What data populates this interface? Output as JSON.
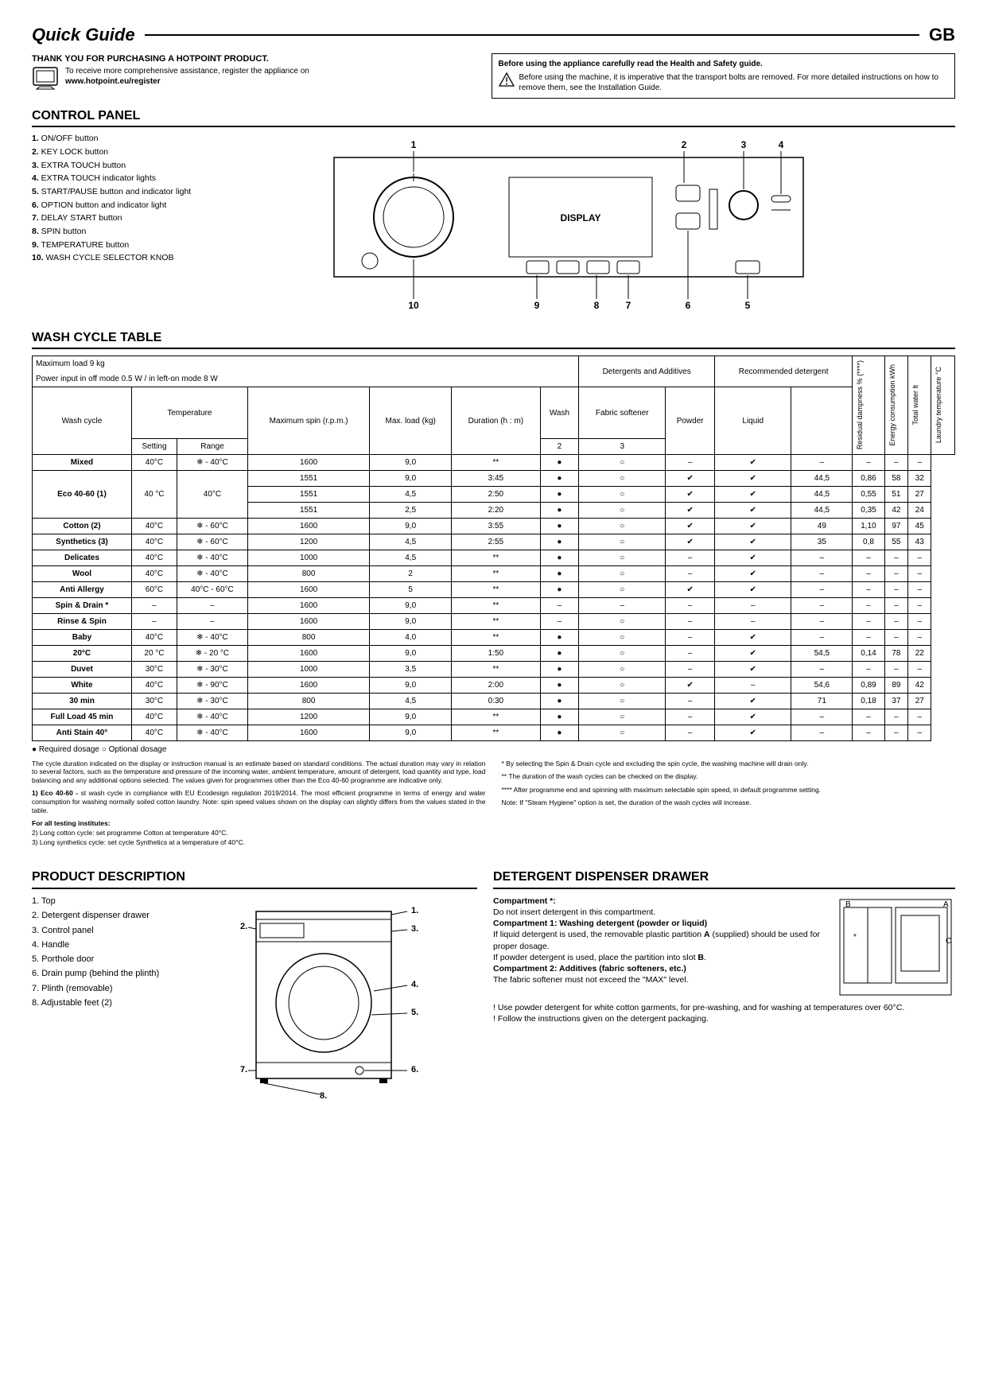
{
  "header": {
    "title": "Quick Guide",
    "country": "GB"
  },
  "intro": {
    "thank_you": "THANK YOU FOR PURCHASING A HOTPOINT PRODUCT.",
    "reg_text": "To receive more comprehensive assistance, register the appliance on",
    "reg_url": "www.hotpoint.eu/register",
    "warn_title": "Before using the appliance carefully read the Health and Safety guide.",
    "warn_body": "Before using the machine, it is imperative that the transport bolts are removed. For more detailed instructions on how to remove them, see the Installation Guide."
  },
  "control_panel": {
    "title": "CONTROL PANEL",
    "items": [
      "ON/OFF button",
      "KEY LOCK button",
      "EXTRA TOUCH button",
      "EXTRA TOUCH indicator lights",
      "START/PAUSE button and indicator light",
      "OPTION button and indicator light",
      "DELAY START button",
      "SPIN button",
      "TEMPERATURE button",
      "WASH CYCLE SELECTOR KNOB"
    ],
    "display_label": "DISPLAY"
  },
  "wash_table": {
    "title": "WASH CYCLE TABLE",
    "header1": "Maximum load 9 kg",
    "header2": "Power input in off mode 0.5 W / in left-on mode 8 W",
    "col_labels": {
      "wash_cycle": "Wash cycle",
      "temperature": "Temperature",
      "setting": "Setting",
      "range": "Range",
      "max_spin": "Maximum spin (r.p.m.)",
      "max_load": "Max. load (kg)",
      "duration": "Duration (h : m)",
      "detergents": "Detergents and Additives",
      "wash": "Wash",
      "softener": "Fabric softener",
      "two": "2",
      "three": "3",
      "recommended": "Recommended detergent",
      "powder": "Powder",
      "liquid": "Liquid",
      "resid": "Residual dampness % (****)",
      "energy": "Energy consumption kWh",
      "water": "Total water lt",
      "laundry_temp": "Laundry temperature °C"
    },
    "rows": [
      {
        "name": "Mixed",
        "setting": "40°C",
        "range": "❄ - 40°C",
        "spin": "1600",
        "load": "9,0",
        "dur": "**",
        "wash": "●",
        "soft": "○",
        "pow": "–",
        "liq": "✔",
        "resid": "–",
        "energy": "–",
        "water": "–",
        "ltemp": "–"
      },
      {
        "name": "Eco 40-60 (1)",
        "rowspan": 3,
        "setting": "40 °C",
        "setspan": 3,
        "range": "40°C",
        "rangespan": 3,
        "spin": "1551",
        "load": "9,0",
        "dur": "3:45",
        "wash": "●",
        "soft": "○",
        "pow": "✔",
        "liq": "✔",
        "resid": "44,5",
        "energy": "0,86",
        "water": "58",
        "ltemp": "32"
      },
      {
        "spin": "1551",
        "load": "4,5",
        "dur": "2:50",
        "wash": "●",
        "soft": "○",
        "pow": "✔",
        "liq": "✔",
        "resid": "44,5",
        "energy": "0,55",
        "water": "51",
        "ltemp": "27"
      },
      {
        "spin": "1551",
        "load": "2,5",
        "dur": "2:20",
        "wash": "●",
        "soft": "○",
        "pow": "✔",
        "liq": "✔",
        "resid": "44,5",
        "energy": "0,35",
        "water": "42",
        "ltemp": "24"
      },
      {
        "name": "Cotton (2)",
        "setting": "40°C",
        "range": "❄ - 60°C",
        "spin": "1600",
        "load": "9,0",
        "dur": "3:55",
        "wash": "●",
        "soft": "○",
        "pow": "✔",
        "liq": "✔",
        "resid": "49",
        "energy": "1,10",
        "water": "97",
        "ltemp": "45"
      },
      {
        "name": "Synthetics (3)",
        "setting": "40°C",
        "range": "❄ - 60°C",
        "spin": "1200",
        "load": "4,5",
        "dur": "2:55",
        "wash": "●",
        "soft": "○",
        "pow": "✔",
        "liq": "✔",
        "resid": "35",
        "energy": "0,8",
        "water": "55",
        "ltemp": "43"
      },
      {
        "name": "Delicates",
        "setting": "40°C",
        "range": "❄ - 40°C",
        "spin": "1000",
        "load": "4,5",
        "dur": "**",
        "wash": "●",
        "soft": "○",
        "pow": "–",
        "liq": "✔",
        "resid": "–",
        "energy": "–",
        "water": "–",
        "ltemp": "–"
      },
      {
        "name": "Wool",
        "setting": "40°C",
        "range": "❄ - 40°C",
        "spin": "800",
        "load": "2",
        "dur": "**",
        "wash": "●",
        "soft": "○",
        "pow": "–",
        "liq": "✔",
        "resid": "–",
        "energy": "–",
        "water": "–",
        "ltemp": "–"
      },
      {
        "name": "Anti Allergy",
        "setting": "60°C",
        "range": "40°C - 60°C",
        "spin": "1600",
        "load": "5",
        "dur": "**",
        "wash": "●",
        "soft": "○",
        "pow": "✔",
        "liq": "✔",
        "resid": "–",
        "energy": "–",
        "water": "–",
        "ltemp": "–"
      },
      {
        "name": "Spin & Drain *",
        "setting": "–",
        "range": "–",
        "spin": "1600",
        "load": "9,0",
        "dur": "**",
        "wash": "–",
        "soft": "–",
        "pow": "–",
        "liq": "–",
        "resid": "–",
        "energy": "–",
        "water": "–",
        "ltemp": "–"
      },
      {
        "name": "Rinse & Spin",
        "setting": "–",
        "range": "–",
        "spin": "1600",
        "load": "9,0",
        "dur": "**",
        "wash": "–",
        "soft": "○",
        "pow": "–",
        "liq": "–",
        "resid": "–",
        "energy": "–",
        "water": "–",
        "ltemp": "–"
      },
      {
        "name": "Baby",
        "setting": "40°C",
        "range": "❄ - 40°C",
        "spin": "800",
        "load": "4,0",
        "dur": "**",
        "wash": "●",
        "soft": "○",
        "pow": "–",
        "liq": "✔",
        "resid": "–",
        "energy": "–",
        "water": "–",
        "ltemp": "–"
      },
      {
        "name": "20°C",
        "setting": "20 °C",
        "range": "❄ - 20 °C",
        "spin": "1600",
        "load": "9,0",
        "dur": "1:50",
        "wash": "●",
        "soft": "○",
        "pow": "–",
        "liq": "✔",
        "resid": "54,5",
        "energy": "0,14",
        "water": "78",
        "ltemp": "22"
      },
      {
        "name": "Duvet",
        "setting": "30°C",
        "range": "❄ - 30°C",
        "spin": "1000",
        "load": "3,5",
        "dur": "**",
        "wash": "●",
        "soft": "○",
        "pow": "–",
        "liq": "✔",
        "resid": "–",
        "energy": "–",
        "water": "–",
        "ltemp": "–"
      },
      {
        "name": "White",
        "setting": "40°C",
        "range": "❄ - 90°C",
        "spin": "1600",
        "load": "9,0",
        "dur": "2:00",
        "wash": "●",
        "soft": "○",
        "pow": "✔",
        "liq": "–",
        "resid": "54,6",
        "energy": "0,89",
        "water": "89",
        "ltemp": "42"
      },
      {
        "name": "30 min",
        "setting": "30°C",
        "range": "❄ - 30°C",
        "spin": "800",
        "load": "4,5",
        "dur": "0:30",
        "wash": "●",
        "soft": "○",
        "pow": "–",
        "liq": "✔",
        "resid": "71",
        "energy": "0,18",
        "water": "37",
        "ltemp": "27"
      },
      {
        "name": "Full Load 45 min",
        "setting": "40°C",
        "range": "❄ - 40°C",
        "spin": "1200",
        "load": "9,0",
        "dur": "**",
        "wash": "●",
        "soft": "○",
        "pow": "–",
        "liq": "✔",
        "resid": "–",
        "energy": "–",
        "water": "–",
        "ltemp": "–"
      },
      {
        "name": "Anti Stain 40°",
        "setting": "40°C",
        "range": "❄ - 40°C",
        "spin": "1600",
        "load": "9,0",
        "dur": "**",
        "wash": "●",
        "soft": "○",
        "pow": "–",
        "liq": "✔",
        "resid": "–",
        "energy": "–",
        "water": "–",
        "ltemp": "–"
      }
    ],
    "legend": "● Required dosage   ○ Optional dosage",
    "fine_left": [
      "The cycle duration indicated on the display or instruction manual is an estimate based on standard conditions. The actual duration may vary in relation to several factors, such as the temperature and pressure of the incoming water, ambient temperature, amount of detergent, load quantity and type, load balancing and any additional options selected. The values given for programmes other than the Eco 40-60 programme are indicative only.",
      "1) Eco 40-60 - Test wash cycle in compliance with EU Ecodesign regulation 2019/2014. The most efficient programme in terms of energy and water consumption for washing normally soiled cotton laundry. Note: spin speed values shown on the display can slightly differs from the values stated in the table.",
      "For all testing institutes:",
      "2)  Long cotton cycle: set programme Cotton at temperature 40°C.",
      "3)  Long synthetics cycle: set cycle Synthetics at a temperature of 40°C."
    ],
    "fine_right": [
      "* By selecting the Spin & Drain cycle and excluding the spin cycle, the washing machine will drain only.",
      "** The duration of the wash cycles can be checked on the display.",
      "**** After programme end and spinning with maximum selectable spin speed, in default programme setting.",
      "Note: If \"Steam Hygiene\" option is set, the duration of the wash cycles will increase."
    ]
  },
  "product_desc": {
    "title": "PRODUCT DESCRIPTION",
    "items": [
      "Top",
      "Detergent dispenser drawer",
      "Control panel",
      "Handle",
      "Porthole door",
      "Drain pump (behind the plinth)",
      "Plinth (removable)",
      "Adjustable feet (2)"
    ]
  },
  "detergent": {
    "title": "DETERGENT DISPENSER DRAWER",
    "comp_star_h": "Compartment *:",
    "comp_star_b": "Do not insert detergent in this compartment.",
    "comp1_h": "Compartment 1: Washing detergent (powder or liquid)",
    "comp1_b1": "If liquid detergent is used, the removable plastic partition A (supplied) should be used for proper dosage.",
    "comp1_b2": "If powder detergent is used, place the partition into slot B.",
    "comp2_h": "Compartment 2: Additives (fabric softeners, etc.)",
    "comp2_b": "The fabric softener must not exceed the \"MAX\" level.",
    "note1": "! Use powder detergent for white cotton garments, for pre-washing, and for washing at temperatures over 60°C.",
    "note2": "! Follow the instructions given on the detergent packaging."
  }
}
